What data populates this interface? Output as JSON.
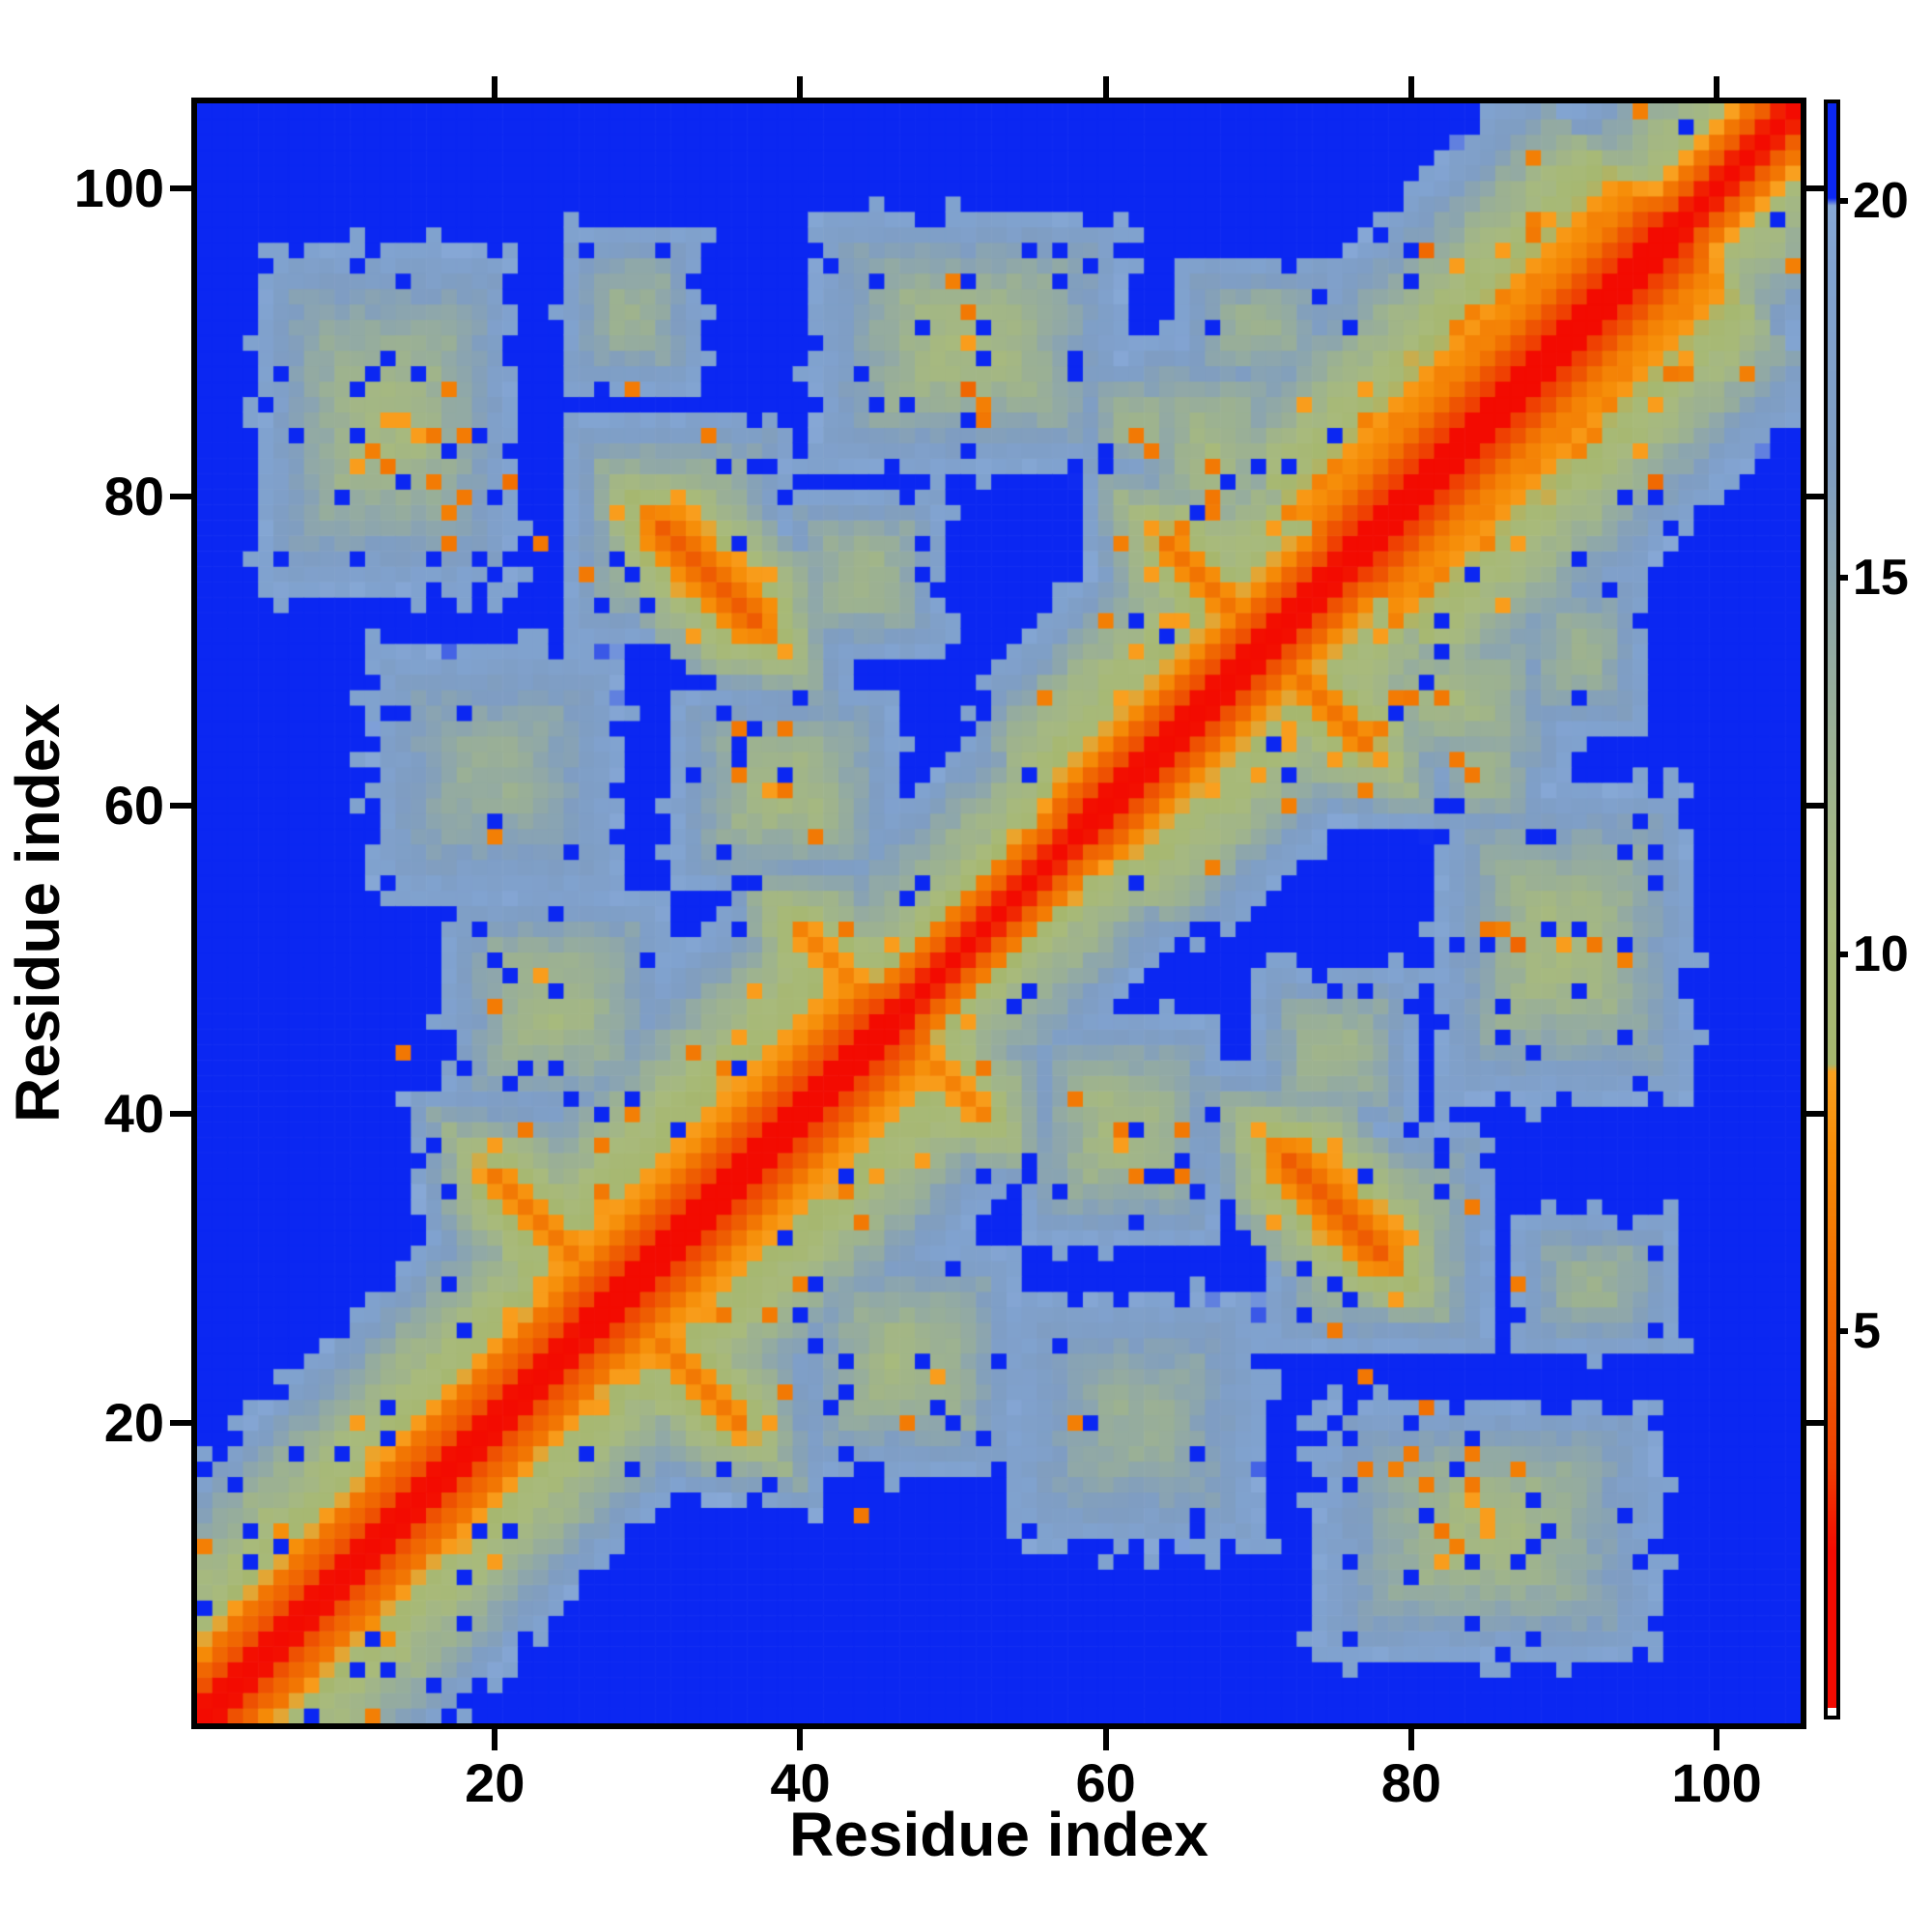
{
  "figure": {
    "background": "#ffffff"
  },
  "axes": {
    "xlabel": "Residue index",
    "ylabel": "Residue index",
    "x_ticks": [
      20,
      40,
      60,
      80,
      100
    ],
    "y_ticks": [
      20,
      40,
      60,
      80,
      100
    ],
    "range": [
      1,
      105
    ]
  },
  "colorbar": {
    "ticks": [
      5,
      10,
      15,
      20
    ],
    "vmin": 0,
    "vmax": 21.3
  },
  "chart_data": {
    "type": "heatmap",
    "title": "",
    "xlabel": "Residue index",
    "ylabel": "Residue index",
    "n": 105,
    "symmetric": true,
    "value_range": [
      0,
      21.3
    ],
    "blue_cap_value": 20.0,
    "colormap_stops": [
      [
        0.0,
        "#f30b01"
      ],
      [
        2.1,
        "#f30b01"
      ],
      [
        3.2,
        "#ef3e02"
      ],
      [
        4.5,
        "#ee5a02"
      ],
      [
        5.9,
        "#f17202"
      ],
      [
        7.4,
        "#f68d08"
      ],
      [
        8.45,
        "#f9a01f"
      ],
      [
        8.55,
        "#a6b76e"
      ],
      [
        10.5,
        "#a8ba7c"
      ],
      [
        12.5,
        "#9db290"
      ],
      [
        14.5,
        "#90a8a8"
      ],
      [
        16.5,
        "#7f9dc2"
      ],
      [
        19.0,
        "#80a2cf"
      ],
      [
        19.95,
        "#87a8d6"
      ],
      [
        20.05,
        "#0b27f2"
      ],
      [
        21.3,
        "#0b27f2"
      ]
    ],
    "band_profile": [
      0.4,
      2.3,
      4.3,
      5.5,
      7.6,
      8.9,
      9.7,
      10.4,
      11.1,
      11.9,
      12.8,
      13.8,
      14.9,
      16.1,
      17.4,
      18.7,
      20.0,
      21.2
    ],
    "band_tail_slope": 1.4,
    "width_segments": [
      [
        1,
        25,
        1.05
      ],
      [
        26,
        46,
        1.18
      ],
      [
        47,
        58,
        0.85
      ],
      [
        59,
        75,
        1.05
      ],
      [
        76,
        97,
        1.3
      ],
      [
        98,
        105,
        0.9
      ]
    ],
    "helix_ranges": [
      [
        4,
        25,
        1.0
      ],
      [
        27,
        45,
        1.0
      ],
      [
        59,
        75,
        0.8
      ],
      [
        76,
        97,
        1.2
      ]
    ],
    "contact_blobs": [
      [
        13,
        85,
        9,
        12,
        10.8
      ],
      [
        32,
        78,
        8,
        8,
        10.2
      ],
      [
        51,
        90,
        11,
        9,
        10.5
      ],
      [
        70,
        91,
        6,
        5,
        12.5
      ],
      [
        39,
        61,
        8,
        7,
        10.5
      ],
      [
        24,
        47,
        8,
        8,
        11.0
      ],
      [
        44,
        75,
        6,
        6,
        11.5
      ],
      [
        68,
        74,
        7,
        6,
        10.0
      ],
      [
        67,
        83,
        6,
        8,
        11.0
      ],
      [
        29,
        92,
        5,
        6,
        12.5
      ],
      [
        20,
        62,
        9,
        9,
        13.0
      ],
      [
        62,
        85,
        4,
        4,
        12.0
      ]
    ],
    "antiparallel_strands": [
      [
        31,
        78,
        37,
        72,
        4.6
      ],
      [
        64,
        77,
        71,
        70,
        6.0
      ],
      [
        20,
        36,
        27,
        29,
        6.3
      ],
      [
        40,
        52,
        47,
        45,
        6.8
      ],
      [
        6,
        13,
        12,
        7,
        7.5
      ]
    ],
    "contact_dots": [
      [
        14,
        44,
        6.2
      ],
      [
        20,
        47,
        6.4
      ],
      [
        33,
        44,
        6.3
      ],
      [
        43,
        52,
        6.3
      ],
      [
        13,
        82,
        6.2
      ],
      [
        16,
        84,
        6.3
      ],
      [
        16,
        81,
        6.4
      ],
      [
        17,
        77,
        6.2
      ],
      [
        18,
        80,
        6.3
      ],
      [
        18,
        84,
        6.4
      ],
      [
        21,
        81,
        5.8
      ],
      [
        23,
        77,
        6.2
      ],
      [
        26,
        75,
        6.3
      ],
      [
        29,
        87,
        6.4
      ],
      [
        34,
        84,
        6.4
      ],
      [
        27,
        35,
        6.3
      ],
      [
        27,
        38,
        6.4
      ],
      [
        22,
        39,
        6.3
      ],
      [
        36,
        65,
        6.2
      ],
      [
        39,
        65,
        6.3
      ],
      [
        36,
        62,
        6.4
      ],
      [
        39,
        61,
        6.2
      ],
      [
        41,
        58,
        6.3
      ],
      [
        51,
        92,
        6.3
      ],
      [
        51,
        87,
        5.2
      ],
      [
        52,
        85,
        6.2
      ],
      [
        62,
        84,
        6.3
      ],
      [
        67,
        80,
        6.2
      ],
      [
        67,
        79,
        6.4
      ],
      [
        67,
        82,
        6.3
      ],
      [
        63,
        83,
        6.3
      ],
      [
        81,
        96,
        5.4
      ],
      [
        88,
        97,
        6.3
      ]
    ],
    "noise": {
      "jitter": 1.6,
      "hole_p": 0.055,
      "orange_p": 0.06,
      "edge_ragged_p": 0.3
    }
  }
}
